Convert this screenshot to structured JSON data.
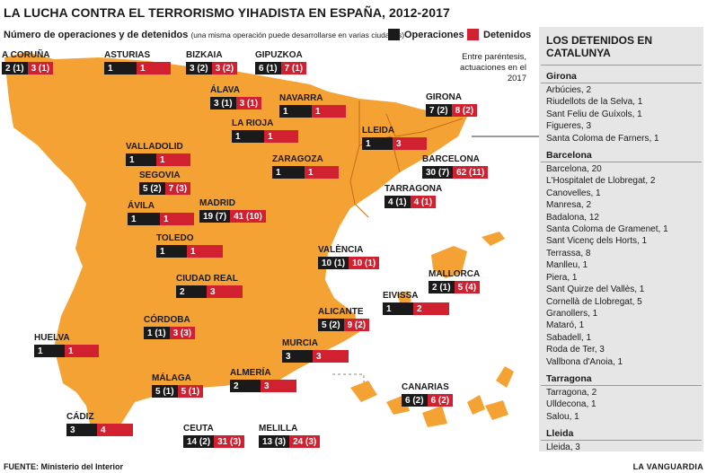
{
  "title": "LA LUCHA CONTRA EL TERRORISMO YIHADISTA EN ESPAÑA, 2012-2017",
  "subtitle": "Número de operaciones y de detenidos",
  "subtitle_note": "(una misma operación puede desarrollarse en varias ciudades)",
  "legend": {
    "operaciones": "Operaciones",
    "detenidos": "Detenidos",
    "op_color": "#1a1a1a",
    "det_color": "#d1202f"
  },
  "parentheses_note": "Entre paréntesis, actuaciones en el 2017",
  "map_color": "#f4a233",
  "regions": [
    {
      "name": "A CORUÑA",
      "op": "2 (1)",
      "det": "3 (1)"
    },
    {
      "name": "ASTURIAS",
      "op": "1",
      "det": "1"
    },
    {
      "name": "BIZKAIA",
      "op": "3 (2)",
      "det": "3 (2)"
    },
    {
      "name": "GIPUZKOA",
      "op": "6 (1)",
      "det": "7 (1)"
    },
    {
      "name": "ÁLAVA",
      "op": "3 (1)",
      "det": "3 (1)"
    },
    {
      "name": "NAVARRA",
      "op": "1",
      "det": "1"
    },
    {
      "name": "LA RIOJA",
      "op": "1",
      "det": "1"
    },
    {
      "name": "GIRONA",
      "op": "7 (2)",
      "det": "8 (2)"
    },
    {
      "name": "LLEIDA",
      "op": "1",
      "det": "3"
    },
    {
      "name": "VALLADOLID",
      "op": "1",
      "det": "1"
    },
    {
      "name": "ZARAGOZA",
      "op": "1",
      "det": "1"
    },
    {
      "name": "BARCELONA",
      "op": "30 (7)",
      "det": "62 (11)"
    },
    {
      "name": "SEGOVIA",
      "op": "5 (2)",
      "det": "7 (3)"
    },
    {
      "name": "TARRAGONA",
      "op": "4 (1)",
      "det": "4 (1)"
    },
    {
      "name": "MADRID",
      "op": "19 (7)",
      "det": "41 (10)"
    },
    {
      "name": "ÁVILA",
      "op": "1",
      "det": "1"
    },
    {
      "name": "TOLEDO",
      "op": "1",
      "det": "1"
    },
    {
      "name": "VALÈNCIA",
      "op": "10 (1)",
      "det": "10 (1)"
    },
    {
      "name": "CIUDAD REAL",
      "op": "2",
      "det": "3"
    },
    {
      "name": "MALLORCA",
      "op": "2 (1)",
      "det": "5 (4)"
    },
    {
      "name": "EIVISSA",
      "op": "1",
      "det": "2"
    },
    {
      "name": "CÓRDOBA",
      "op": "1 (1)",
      "det": "3 (3)"
    },
    {
      "name": "ALICANTE",
      "op": "5 (2)",
      "det": "9 (2)"
    },
    {
      "name": "HUELVA",
      "op": "1",
      "det": "1"
    },
    {
      "name": "MURCIA",
      "op": "3",
      "det": "3"
    },
    {
      "name": "MÁLAGA",
      "op": "5 (1)",
      "det": "5 (1)"
    },
    {
      "name": "ALMERÍA",
      "op": "2",
      "det": "3"
    },
    {
      "name": "CANARIAS",
      "op": "6 (2)",
      "det": "6 (2)"
    },
    {
      "name": "CÁDIZ",
      "op": "3",
      "det": "4"
    },
    {
      "name": "CEUTA",
      "op": "14 (2)",
      "det": "31 (3)"
    },
    {
      "name": "MELILLA",
      "op": "13 (3)",
      "det": "24 (3)"
    }
  ],
  "panel": {
    "title": "LOS DETENIDOS EN CATALUNYA",
    "provinces": [
      {
        "name": "Girona",
        "items": [
          "Arbúcies, 2",
          "Riudellots de la Selva, 1",
          "Sant Feliu de Guíxols, 1",
          "Figueres, 3",
          "Santa Coloma de Farners, 1"
        ]
      },
      {
        "name": "Barcelona",
        "items": [
          "Barcelona, 20",
          "L'Hospitalet de Llobregat, 2",
          "Canovelles, 1",
          "Manresa, 2",
          "Badalona, 12",
          "Santa Coloma de Gramenet, 1",
          "Sant Vicenç dels Horts, 1",
          "Terrassa, 8",
          "Manlleu, 1",
          "Piera, 1",
          "Sant Quirze del Vallès, 1",
          "Cornellà de Llobregat, 5",
          "Granollers, 1",
          "Mataró, 1",
          "Sabadell, 1",
          "Roda de Ter, 3",
          "Vallbona d'Anoia, 1"
        ]
      },
      {
        "name": "Tarragona",
        "items": [
          "Tarragona, 2",
          "Ulldecona, 1",
          "Salou, 1"
        ]
      },
      {
        "name": "Lleida",
        "items": [
          "Lleida, 3"
        ]
      }
    ]
  },
  "footer": {
    "source": "FUENTE: Ministerio del Interior",
    "brand": "LA VANGUARDIA"
  }
}
